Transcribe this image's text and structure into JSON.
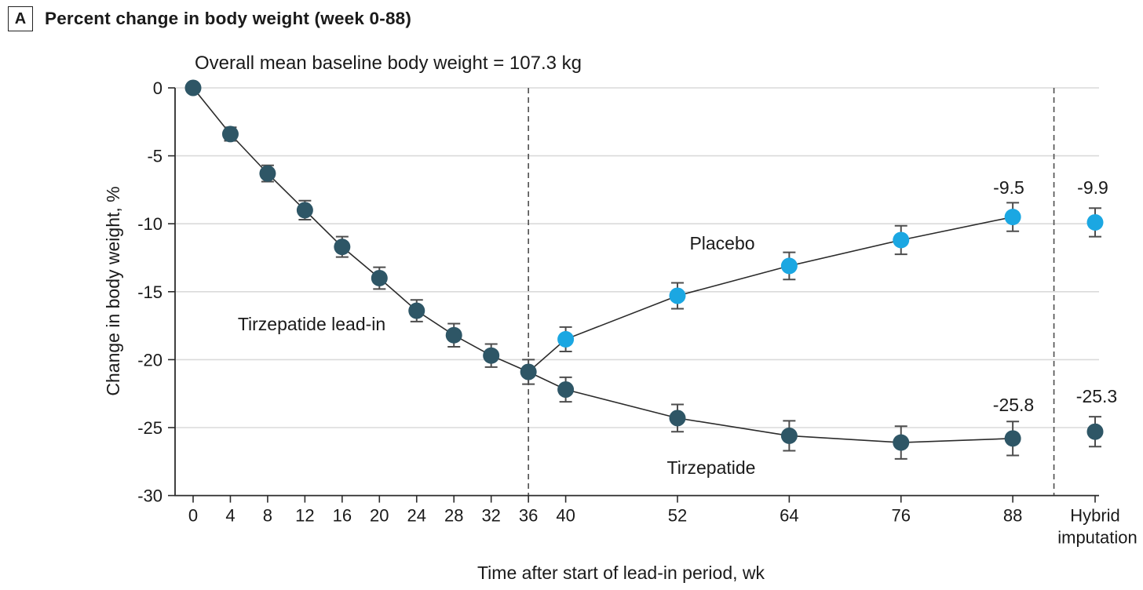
{
  "header": {
    "panel": "A",
    "title": "Percent change in body weight (week 0-88)"
  },
  "chart_data": {
    "type": "line",
    "subtitle": "Overall mean baseline body weight = 107.3 kg",
    "xlabel": "Time after start of lead-in period, wk",
    "ylabel": "Change in body weight, %",
    "ylim": [
      -30,
      0
    ],
    "grid": "horizontal",
    "yticks": [
      0,
      -5,
      -10,
      -15,
      -20,
      -25,
      -30
    ],
    "xticks": [
      0,
      4,
      8,
      12,
      16,
      20,
      24,
      28,
      32,
      36,
      40,
      52,
      64,
      76,
      88
    ],
    "hybrid_label": [
      "Hybrid",
      "imputation"
    ],
    "dashed_line_weeks": [
      36
    ],
    "dashed_separator_before_hybrid": true,
    "colors": {
      "tirzepatide": "#2E5666",
      "placebo": "#1BA7E2",
      "gridline": "#DADADA",
      "axis": "#2B2B2B",
      "error_bar": "#4D4D4D",
      "dashed_line": "#4D4D4D"
    },
    "series": [
      {
        "name": "Tirzepatide",
        "color": "#2E5666",
        "weeks": [
          0,
          4,
          8,
          12,
          16,
          20,
          24,
          28,
          32,
          36,
          40,
          52,
          64,
          76,
          88
        ],
        "values": [
          0,
          -3.4,
          -6.3,
          -9.0,
          -11.7,
          -14.0,
          -16.4,
          -18.2,
          -19.7,
          -20.9,
          -22.2,
          -24.3,
          -25.6,
          -26.1,
          -25.8
        ],
        "err": [
          0.15,
          0.5,
          0.6,
          0.7,
          0.75,
          0.8,
          0.8,
          0.85,
          0.85,
          0.9,
          0.9,
          1.0,
          1.1,
          1.2,
          1.25
        ],
        "hybrid": {
          "value": -25.3,
          "err": 1.1
        },
        "line_only_first_point": false
      },
      {
        "name": "Placebo",
        "color": "#1BA7E2",
        "weeks": [
          36,
          40,
          52,
          64,
          76,
          88
        ],
        "values": [
          -20.9,
          -18.5,
          -15.3,
          -13.1,
          -11.2,
          -9.5
        ],
        "err": [
          0,
          0.9,
          0.95,
          1.0,
          1.05,
          1.05
        ],
        "hybrid": {
          "value": -9.9,
          "err": 1.05
        },
        "line_only_first_point": true
      }
    ],
    "annotations": [
      {
        "text": "Tirzepatide lead-in"
      },
      {
        "text": "Placebo"
      },
      {
        "text": "Tirzepatide"
      }
    ],
    "value_labels": [
      {
        "series": "Placebo",
        "week": 88,
        "text": "-9.5"
      },
      {
        "series": "Placebo",
        "week": "Hybrid imputation",
        "text": "-9.9"
      },
      {
        "series": "Tirzepatide",
        "week": 88,
        "text": "-25.8"
      },
      {
        "series": "Tirzepatide",
        "week": "Hybrid imputation",
        "text": "-25.3"
      }
    ]
  }
}
